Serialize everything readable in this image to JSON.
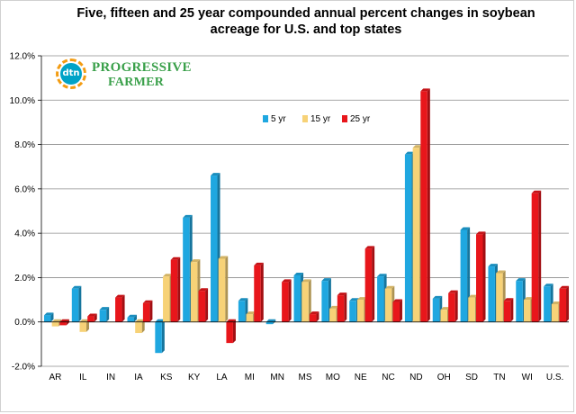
{
  "chart_data": {
    "type": "bar",
    "title": "Five, fifteen and 25 year compounded annual percent changes in soybean acreage for U.S. and top states",
    "title_lines": [
      "Five, fifteen and 25 year compounded annual percent changes in soybean",
      "acreage for U.S. and top states"
    ],
    "categories": [
      "AR",
      "IL",
      "IN",
      "IA",
      "KS",
      "KY",
      "LA",
      "MI",
      "MN",
      "MS",
      "MO",
      "NE",
      "NC",
      "ND",
      "OH",
      "SD",
      "TN",
      "WI",
      "U.S."
    ],
    "series": [
      {
        "name": "5 yr",
        "color": "#1fa7e0",
        "values": [
          0.3,
          1.5,
          0.55,
          0.2,
          -1.4,
          4.7,
          6.6,
          0.95,
          -0.1,
          2.1,
          1.85,
          0.95,
          2.05,
          7.55,
          1.05,
          4.15,
          2.5,
          1.85,
          1.6
        ]
      },
      {
        "name": "15 yr",
        "color": "#f7d277",
        "values": [
          -0.2,
          -0.45,
          0.0,
          -0.5,
          2.05,
          2.7,
          2.85,
          0.35,
          0.0,
          1.8,
          0.6,
          1.0,
          1.5,
          7.85,
          0.55,
          1.1,
          2.2,
          1.0,
          0.8
        ]
      },
      {
        "name": "25 yr",
        "color": "#e8161b",
        "values": [
          -0.15,
          0.25,
          1.1,
          0.85,
          2.8,
          1.4,
          -0.95,
          2.55,
          1.8,
          0.35,
          1.2,
          3.3,
          0.9,
          10.4,
          1.3,
          3.95,
          0.95,
          5.8,
          1.5
        ]
      }
    ],
    "ylim": [
      -2.0,
      12.0
    ],
    "yticks": [
      "-2.0%",
      "0.0%",
      "2.0%",
      "4.0%",
      "6.0%",
      "8.0%",
      "10.0%",
      "12.0%"
    ],
    "xlabel": "",
    "ylabel": "",
    "legend": "inside-top-center"
  },
  "logo": {
    "mark": "dtn",
    "line1": "PROGRESSIVE",
    "line2": "FARMER"
  }
}
